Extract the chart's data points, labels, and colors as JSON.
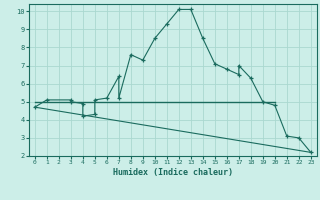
{
  "xlabel": "Humidex (Indice chaleur)",
  "bg_color": "#cceee8",
  "line_color": "#1a6b5e",
  "grid_color": "#aad8d0",
  "xlim": [
    -0.5,
    23.5
  ],
  "ylim": [
    2,
    10.4
  ],
  "yticks": [
    2,
    3,
    4,
    5,
    6,
    7,
    8,
    9,
    10
  ],
  "xticks": [
    0,
    1,
    2,
    3,
    4,
    5,
    6,
    7,
    8,
    9,
    10,
    11,
    12,
    13,
    14,
    15,
    16,
    17,
    18,
    19,
    20,
    21,
    22,
    23
  ],
  "line1_x": [
    0,
    1,
    3,
    3,
    4,
    4,
    5,
    5,
    6,
    7,
    7,
    8,
    9,
    10,
    11,
    12,
    13,
    14,
    15,
    16,
    17,
    17,
    18,
    19,
    20,
    21,
    22,
    23
  ],
  "line1_y": [
    4.7,
    5.1,
    5.1,
    5.0,
    4.9,
    4.2,
    4.3,
    5.1,
    5.2,
    6.4,
    5.2,
    7.6,
    7.3,
    8.5,
    9.3,
    10.1,
    10.1,
    8.5,
    7.1,
    6.8,
    6.5,
    7.0,
    6.3,
    5.0,
    4.8,
    3.1,
    3.0,
    2.2
  ],
  "line2_x": [
    0,
    20
  ],
  "line2_y": [
    5.0,
    5.0
  ],
  "line3_x": [
    0,
    23
  ],
  "line3_y": [
    4.7,
    2.2
  ]
}
